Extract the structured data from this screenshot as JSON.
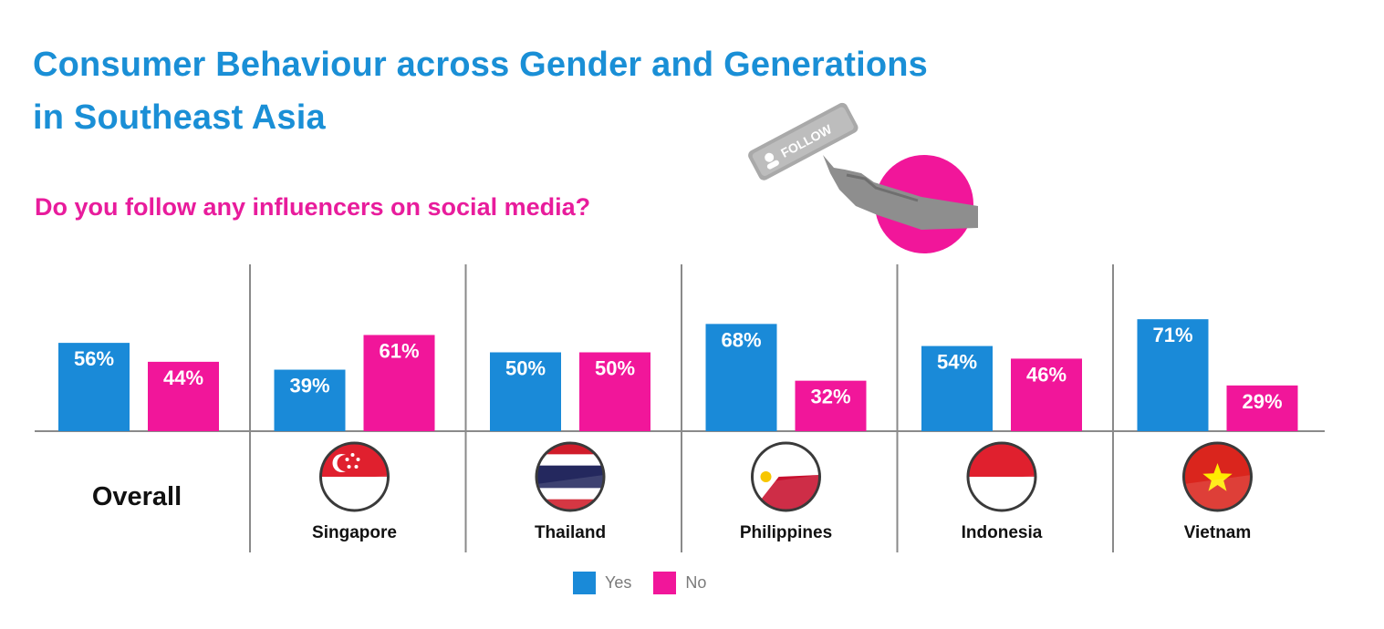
{
  "title_line1": "Consumer Behaviour across Gender and Generations",
  "title_line2": "in Southeast Asia",
  "question": "Do you follow any influencers on social media?",
  "decoration": {
    "button_text": "FOLLOW",
    "icon": "hand-pressing-follow-icon"
  },
  "colors": {
    "yes": "#1a8ad8",
    "no": "#f1169a",
    "title": "#1a8fd6",
    "question": "#e81c9c"
  },
  "chart_data": {
    "type": "bar",
    "categories": [
      "Overall",
      "Singapore",
      "Thailand",
      "Philippines",
      "Indonesia",
      "Vietnam"
    ],
    "series": [
      {
        "name": "Yes",
        "values": [
          56,
          39,
          50,
          68,
          54,
          71
        ],
        "labels": [
          "56%",
          "39%",
          "50%",
          "68%",
          "54%",
          "71%"
        ]
      },
      {
        "name": "No",
        "values": [
          44,
          61,
          50,
          32,
          46,
          29
        ],
        "labels": [
          "44%",
          "61%",
          "50%",
          "32%",
          "46%",
          "29%"
        ]
      }
    ],
    "flags": [
      "",
      "singapore-flag-icon",
      "thailand-flag-icon",
      "philippines-flag-icon",
      "indonesia-flag-icon",
      "vietnam-flag-icon"
    ],
    "ylim": [
      0,
      100
    ],
    "grid": false,
    "legend_position": "bottom-center"
  }
}
